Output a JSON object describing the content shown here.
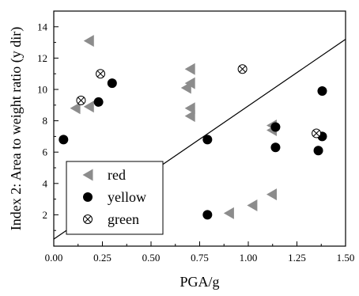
{
  "chart_data": {
    "type": "scatter",
    "xlabel": "PGA/g",
    "ylabel": "Index 2: Area to weight ratio (y dir)",
    "xlim": [
      0,
      1.5
    ],
    "ylim": [
      0,
      15
    ],
    "x_ticks": [
      "0.00",
      "0.25",
      "0.50",
      "0.75",
      "1.00",
      "1.25",
      "1.50"
    ],
    "y_ticks": [
      "2",
      "4",
      "6",
      "8",
      "10",
      "12",
      "14"
    ],
    "legend_position": "bottom-left",
    "series": [
      {
        "name": "red",
        "marker": "triangle-left",
        "color": "#8c8c8c",
        "points": [
          [
            0.18,
            13.1
          ],
          [
            0.11,
            8.8
          ],
          [
            0.18,
            8.9
          ],
          [
            0.7,
            11.3
          ],
          [
            0.7,
            10.4
          ],
          [
            0.68,
            10.1
          ],
          [
            0.7,
            8.8
          ],
          [
            0.7,
            8.3
          ],
          [
            1.12,
            7.7
          ],
          [
            1.12,
            7.4
          ],
          [
            0.9,
            2.1
          ],
          [
            1.02,
            2.6
          ],
          [
            1.12,
            3.3
          ]
        ]
      },
      {
        "name": "yellow",
        "marker": "circle",
        "color": "#000000",
        "points": [
          [
            0.05,
            6.8
          ],
          [
            0.23,
            9.2
          ],
          [
            0.3,
            10.4
          ],
          [
            0.79,
            6.8
          ],
          [
            0.79,
            2.0
          ],
          [
            1.14,
            7.6
          ],
          [
            1.14,
            6.3
          ],
          [
            1.36,
            6.1
          ],
          [
            1.38,
            9.9
          ],
          [
            1.38,
            7.0
          ]
        ]
      },
      {
        "name": "green",
        "marker": "circle-x",
        "color": "#000000",
        "points": [
          [
            0.14,
            9.3
          ],
          [
            0.24,
            11.0
          ],
          [
            0.97,
            11.3
          ],
          [
            1.35,
            7.2
          ]
        ]
      }
    ],
    "lines": [
      {
        "points": [
          [
            0.0,
            0.45
          ],
          [
            1.5,
            13.2
          ]
        ],
        "color": "#000000"
      }
    ]
  }
}
